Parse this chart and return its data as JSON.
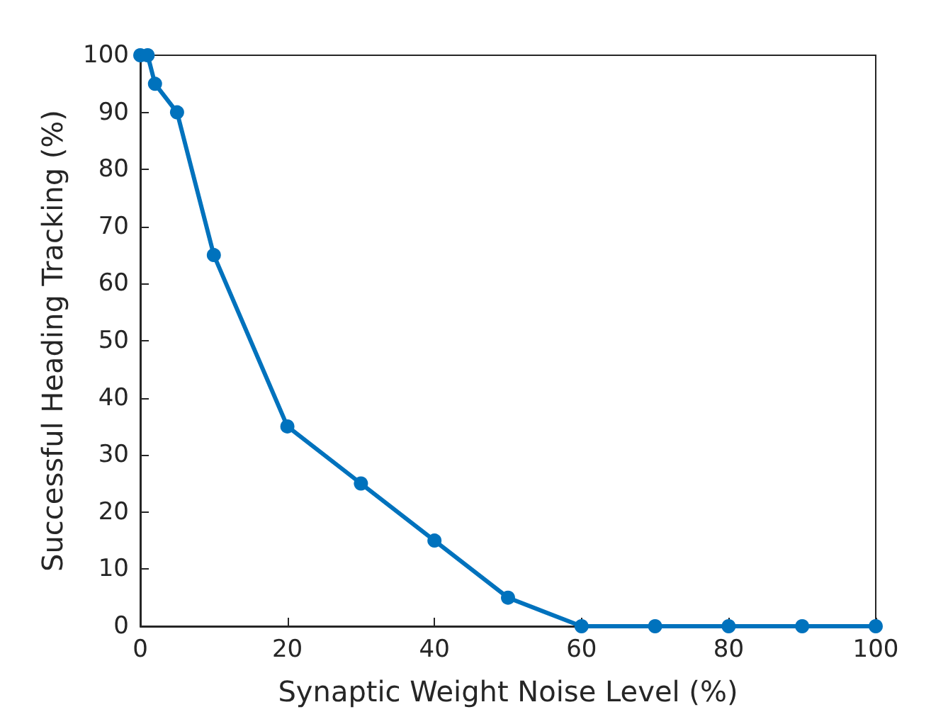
{
  "chart_data": {
    "type": "line",
    "xlabel": "Synaptic Weight Noise Level (%)",
    "ylabel": "Successful Heading Tracking (%)",
    "x": [
      0,
      1,
      2,
      5,
      10,
      20,
      30,
      40,
      50,
      60,
      70,
      80,
      90,
      100
    ],
    "series": [
      {
        "color": "#0072bd",
        "values": [
          100,
          100,
          95,
          90,
          65,
          35,
          25,
          15,
          5,
          0,
          0,
          0,
          0,
          0
        ]
      }
    ],
    "xlim": [
      0,
      100
    ],
    "xticks": [
      0,
      20,
      40,
      60,
      80,
      100
    ],
    "ylim": [
      0,
      100
    ],
    "yticks": [
      0,
      10,
      20,
      30,
      40,
      50,
      60,
      70,
      80,
      90,
      100
    ],
    "grid": false,
    "marker": "circle",
    "line_style": "solid"
  }
}
